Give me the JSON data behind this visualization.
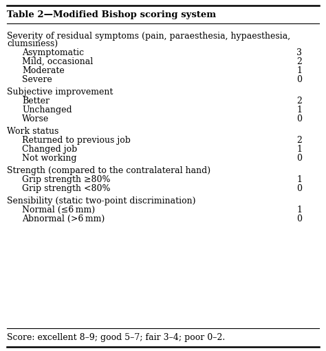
{
  "title": "Table 2—Modified Bishop scoring system",
  "rows": [
    {
      "text": "Severity of residual symptoms (pain, paraesthesia, hypaesthesia,",
      "text2": "clumsiness)",
      "indent": 0,
      "score": ""
    },
    {
      "text": "Asymptomatic",
      "text2": "",
      "indent": 1,
      "score": "3"
    },
    {
      "text": "Mild, occasional",
      "text2": "",
      "indent": 1,
      "score": "2"
    },
    {
      "text": "Moderate",
      "text2": "",
      "indent": 1,
      "score": "1"
    },
    {
      "text": "Severe",
      "text2": "",
      "indent": 1,
      "score": "0"
    },
    {
      "text": "",
      "text2": "",
      "indent": 0,
      "score": ""
    },
    {
      "text": "Subjective improvement",
      "text2": "",
      "indent": 0,
      "score": ""
    },
    {
      "text": "Better",
      "text2": "",
      "indent": 1,
      "score": "2"
    },
    {
      "text": "Unchanged",
      "text2": "",
      "indent": 1,
      "score": "1"
    },
    {
      "text": "Worse",
      "text2": "",
      "indent": 1,
      "score": "0"
    },
    {
      "text": "",
      "text2": "",
      "indent": 0,
      "score": ""
    },
    {
      "text": "Work status",
      "text2": "",
      "indent": 0,
      "score": ""
    },
    {
      "text": "Returned to previous job",
      "text2": "",
      "indent": 1,
      "score": "2"
    },
    {
      "text": "Changed job",
      "text2": "",
      "indent": 1,
      "score": "1"
    },
    {
      "text": "Not working",
      "text2": "",
      "indent": 1,
      "score": "0"
    },
    {
      "text": "",
      "text2": "",
      "indent": 0,
      "score": ""
    },
    {
      "text": "Strength (compared to the contralateral hand)",
      "text2": "",
      "indent": 0,
      "score": ""
    },
    {
      "text": "Grip strength ≥80%",
      "text2": "",
      "indent": 1,
      "score": "1"
    },
    {
      "text": "Grip strength <80%",
      "text2": "",
      "indent": 1,
      "score": "0"
    },
    {
      "text": "",
      "text2": "",
      "indent": 0,
      "score": ""
    },
    {
      "text": "Sensibility (static two-point discrimination)",
      "text2": "",
      "indent": 0,
      "score": ""
    },
    {
      "text": "Normal (≤6 mm)",
      "text2": "",
      "indent": 1,
      "score": "1"
    },
    {
      "text": "Abnormal (>6 mm)",
      "text2": "",
      "indent": 1,
      "score": "0"
    }
  ],
  "footer": "Score: excellent 8–9; good 5–7; fair 3–4; poor 0–2.",
  "bg_color": "#ffffff",
  "line_color": "#000000",
  "font_size": 9.0,
  "title_font_size": 9.5
}
